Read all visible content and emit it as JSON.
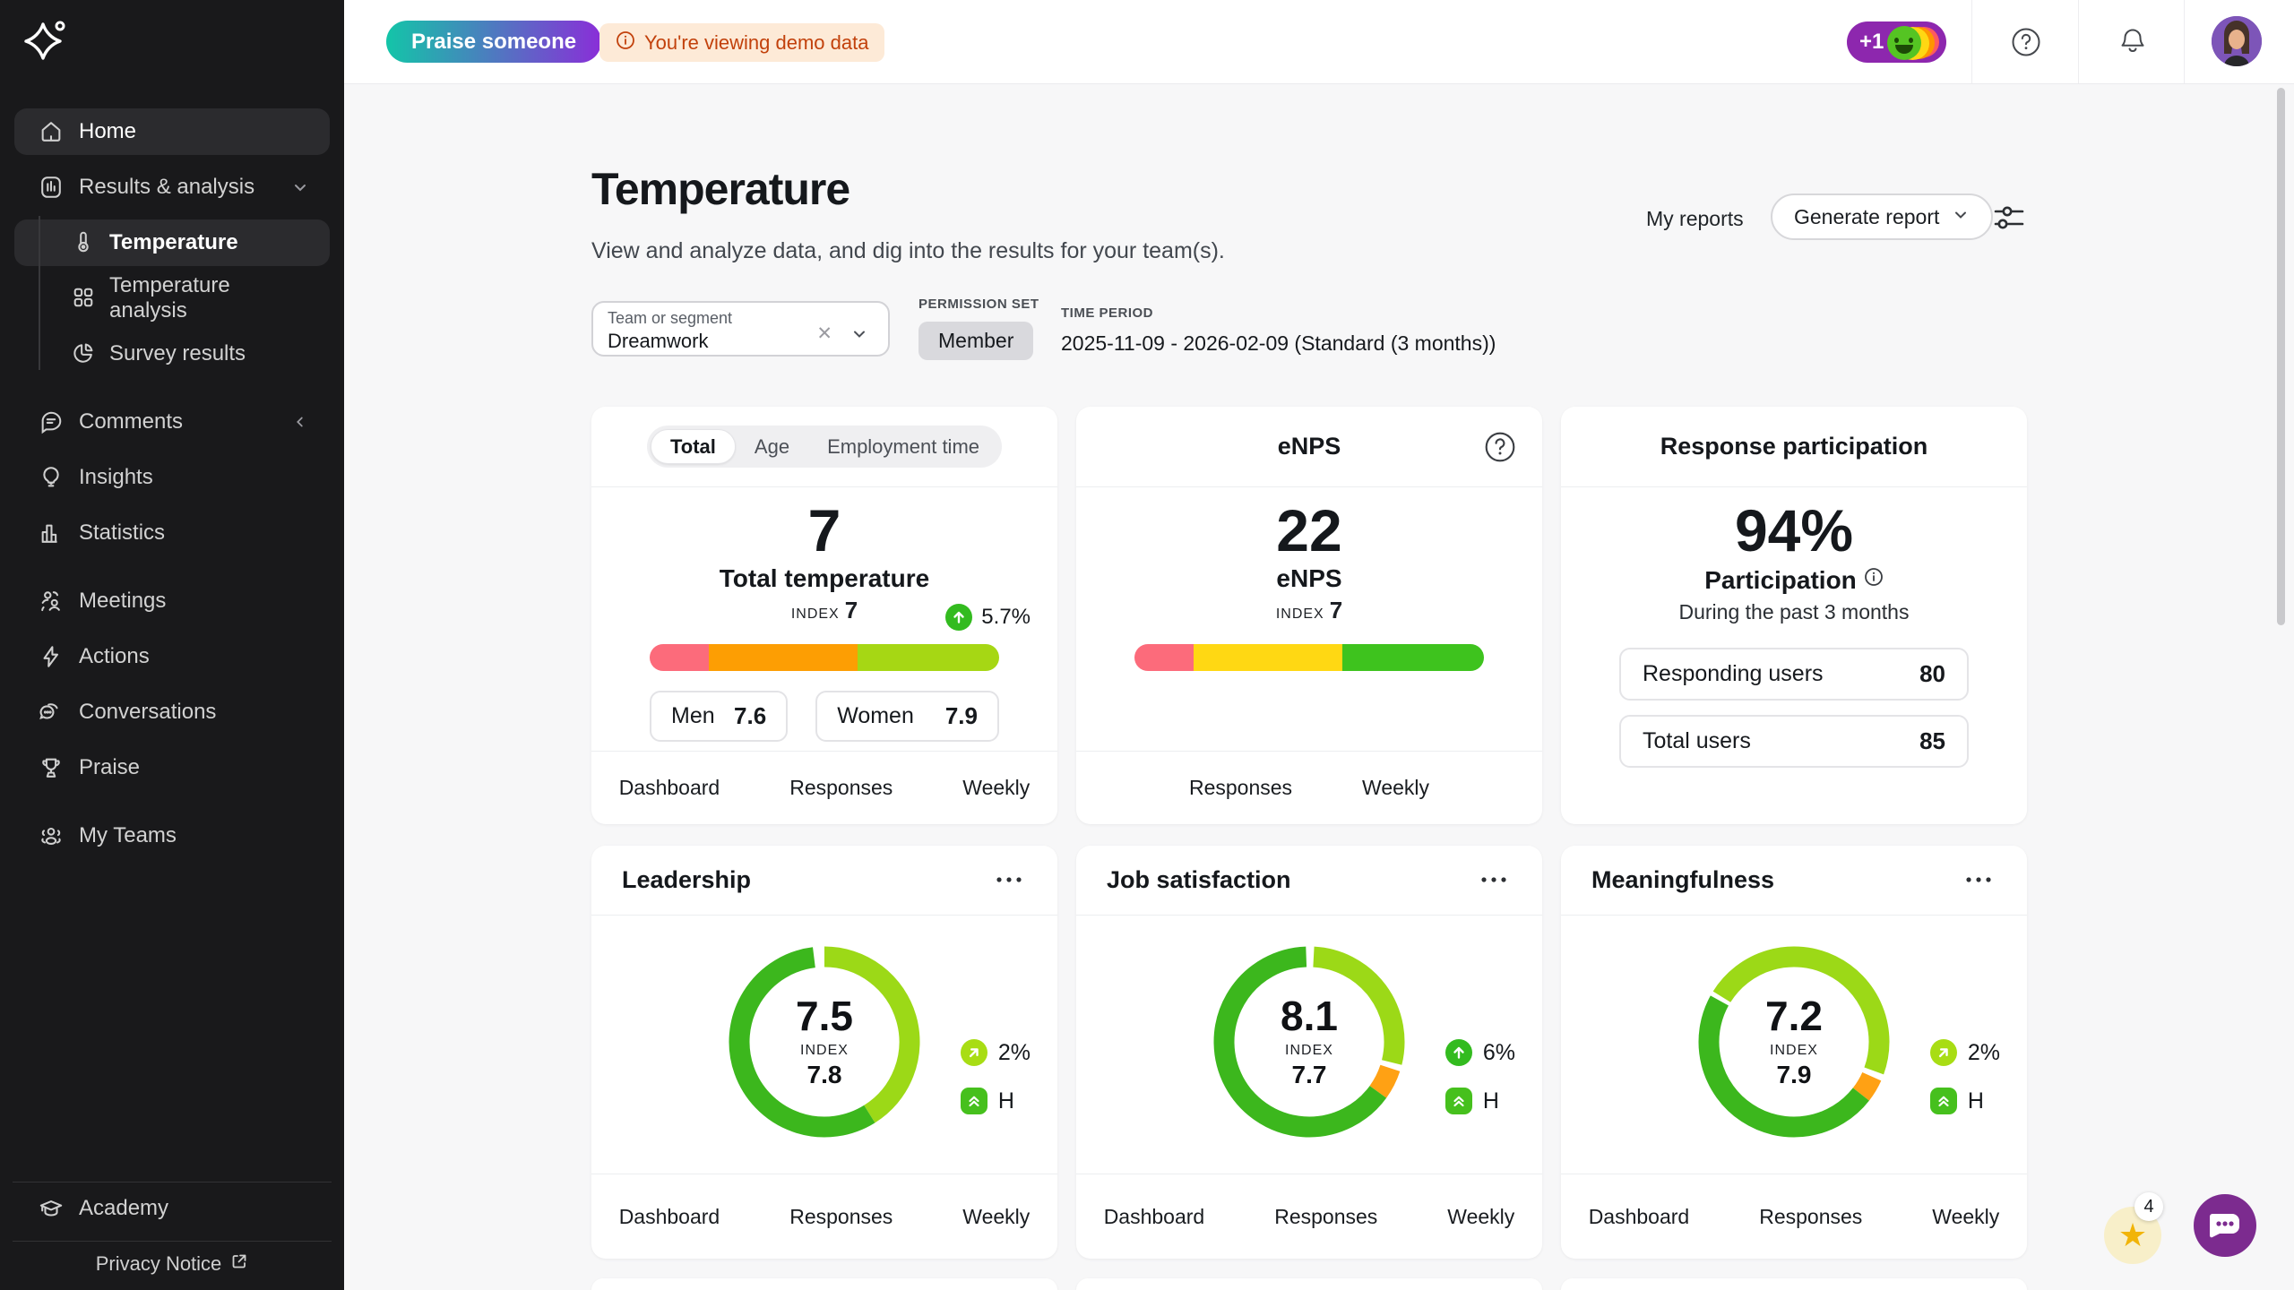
{
  "topbar": {
    "praise_button": "Praise someone",
    "demo_notice": "You're viewing demo data",
    "reaction_count": "+1"
  },
  "sidebar": {
    "items": [
      {
        "label": "Home"
      },
      {
        "label": "Results & analysis"
      },
      {
        "label": "Comments"
      },
      {
        "label": "Insights"
      },
      {
        "label": "Statistics"
      },
      {
        "label": "Meetings"
      },
      {
        "label": "Actions"
      },
      {
        "label": "Conversations"
      },
      {
        "label": "Praise"
      },
      {
        "label": "My Teams"
      }
    ],
    "sub_items": [
      {
        "label": "Temperature"
      },
      {
        "label": "Temperature analysis"
      },
      {
        "label": "Survey results"
      }
    ],
    "academy": "Academy",
    "privacy_notice": "Privacy Notice"
  },
  "header": {
    "title": "Temperature",
    "subtitle": "View and analyze data, and dig into the results for your team(s).",
    "my_reports": "My reports",
    "generate_report": "Generate report"
  },
  "filters": {
    "team_label": "Team or segment",
    "team_value": "Dreamwork",
    "permission_label": "PERMISSION SET",
    "permission_value": "Member",
    "period_label": "TIME PERIOD",
    "period_value": "2025-11-09 - 2026-02-09 (Standard (3 months))"
  },
  "colors": {
    "bar_pink": "#fc6b7b",
    "bar_orange": "#fd9e03",
    "bar_yellowgreen": "#a6d714",
    "bar_yellow": "#ffd813",
    "bar_green": "#3ec31e",
    "donut_light": "#9cd917",
    "donut_dark": "#3cb71d",
    "donut_orange": "#ffa114",
    "badge_green": "#33bb1f",
    "badge_lime": "#a8dd14",
    "badge_h": "#46c01d",
    "praise_gradient": [
      "#13c5a8",
      "#8a2ed8"
    ],
    "reaction_purple": "#8d27ae"
  },
  "cards": {
    "temperature": {
      "tabs": [
        "Total",
        "Age",
        "Employment time"
      ],
      "active_tab": "Total",
      "value": "7",
      "change": "5.7%",
      "title": "Total temperature",
      "index_label": "INDEX",
      "index_value": "7",
      "bar": [
        {
          "color": "#fc6b7b",
          "pct": 17
        },
        {
          "color": "#fd9e03",
          "pct": 42.5
        },
        {
          "color": "#a6d714",
          "pct": 40.5
        }
      ],
      "breakdown": [
        {
          "label": "Men",
          "value": "7.6"
        },
        {
          "label": "Women",
          "value": "7.9"
        }
      ],
      "links": [
        "Dashboard",
        "Responses",
        "Weekly"
      ]
    },
    "enps": {
      "title": "eNPS",
      "value": "22",
      "label": "eNPS",
      "index_label": "INDEX",
      "index_value": "7",
      "bar": [
        {
          "color": "#fc6b7b",
          "pct": 17
        },
        {
          "color": "#ffd813",
          "pct": 42.5
        },
        {
          "color": "#3ec31e",
          "pct": 40.5
        }
      ],
      "links": [
        "Responses",
        "Weekly"
      ]
    },
    "participation": {
      "title": "Response participation",
      "value": "94%",
      "label": "Participation",
      "sublabel": "During the past 3 months",
      "rows": [
        {
          "label": "Responding users",
          "value": "80"
        },
        {
          "label": "Total users",
          "value": "85"
        }
      ]
    },
    "leadership": {
      "title": "Leadership",
      "value": "7.5",
      "index_label": "INDEX",
      "index_value": "7.8",
      "change": "2%",
      "benchmark": "H",
      "donut": [
        {
          "color": "#9cd917",
          "start": 0,
          "end": 148
        },
        {
          "color": "#3cb71d",
          "start": 148,
          "end": 353
        }
      ],
      "links": [
        "Dashboard",
        "Responses",
        "Weekly"
      ]
    },
    "job_satisfaction": {
      "title": "Job satisfaction",
      "value": "8.1",
      "index_label": "INDEX",
      "index_value": "7.7",
      "change": "6%",
      "benchmark": "H",
      "donut": [
        {
          "color": "#9cd917",
          "start": 3,
          "end": 104
        },
        {
          "color": "#ffa114",
          "start": 108,
          "end": 126
        },
        {
          "color": "#3cb71d",
          "start": 126,
          "end": 358
        }
      ],
      "links": [
        "Dashboard",
        "Responses",
        "Weekly"
      ]
    },
    "meaningfulness": {
      "title": "Meaningfulness",
      "value": "7.2",
      "index_label": "INDEX",
      "index_value": "7.9",
      "change": "2%",
      "benchmark": "H",
      "donut": [
        {
          "color": "#9cd917",
          "start": -58,
          "end": 110
        },
        {
          "color": "#ffa114",
          "start": 114,
          "end": 128
        },
        {
          "color": "#3cb71d",
          "start": 128,
          "end": 299
        }
      ],
      "links": [
        "Dashboard",
        "Responses",
        "Weekly"
      ]
    }
  },
  "fab": {
    "star_count": "4"
  }
}
